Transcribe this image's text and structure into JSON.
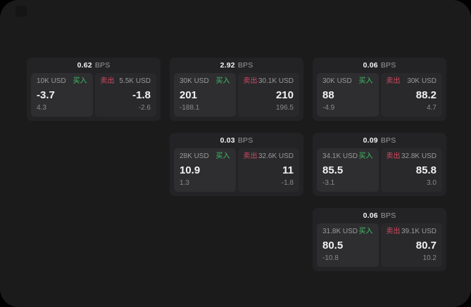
{
  "colors": {
    "surface": "#1b1b1c",
    "card_bg": "#232325",
    "buy_panel_bg": "#2e2e30",
    "sell_panel_bg": "#29292b",
    "buy_green": "#3fbf68",
    "sell_red": "#d14a62",
    "label_grey": "#9a9a9a",
    "sub_grey": "#8a8a8a",
    "value_white": "#f2f2f2"
  },
  "labels": {
    "bps_suffix": "BPS",
    "buy": "买入",
    "sell": "卖出"
  },
  "cards": [
    {
      "col": 0,
      "row": 0,
      "bps": "0.62",
      "buy": {
        "amount": "10K USD",
        "price": "-3.7",
        "delta": "4.3"
      },
      "sell": {
        "amount": "5.5K USD",
        "price": "-1.8",
        "delta": "-2.6"
      }
    },
    {
      "col": 1,
      "row": 0,
      "bps": "2.92",
      "buy": {
        "amount": "30K USD",
        "price": "201",
        "delta": "-188.1"
      },
      "sell": {
        "amount": "30.1K USD",
        "price": "210",
        "delta": "196.5"
      }
    },
    {
      "col": 2,
      "row": 0,
      "bps": "0.06",
      "buy": {
        "amount": "30K USD",
        "price": "88",
        "delta": "-4.9"
      },
      "sell": {
        "amount": "30K USD",
        "price": "88.2",
        "delta": "4.7"
      }
    },
    {
      "col": 1,
      "row": 1,
      "bps": "0.03",
      "buy": {
        "amount": "28K USD",
        "price": "10.9",
        "delta": "1.3"
      },
      "sell": {
        "amount": "32.6K USD",
        "price": "11",
        "delta": "-1.8"
      }
    },
    {
      "col": 2,
      "row": 1,
      "bps": "0.09",
      "buy": {
        "amount": "34.1K USD",
        "price": "85.5",
        "delta": "-3.1"
      },
      "sell": {
        "amount": "32.8K USD",
        "price": "85.8",
        "delta": "3.0"
      }
    },
    {
      "col": 2,
      "row": 2,
      "bps": "0.06",
      "buy": {
        "amount": "31.8K USD",
        "price": "80.5",
        "delta": "-10.8"
      },
      "sell": {
        "amount": "39.1K USD",
        "price": "80.7",
        "delta": "10.2"
      }
    }
  ]
}
